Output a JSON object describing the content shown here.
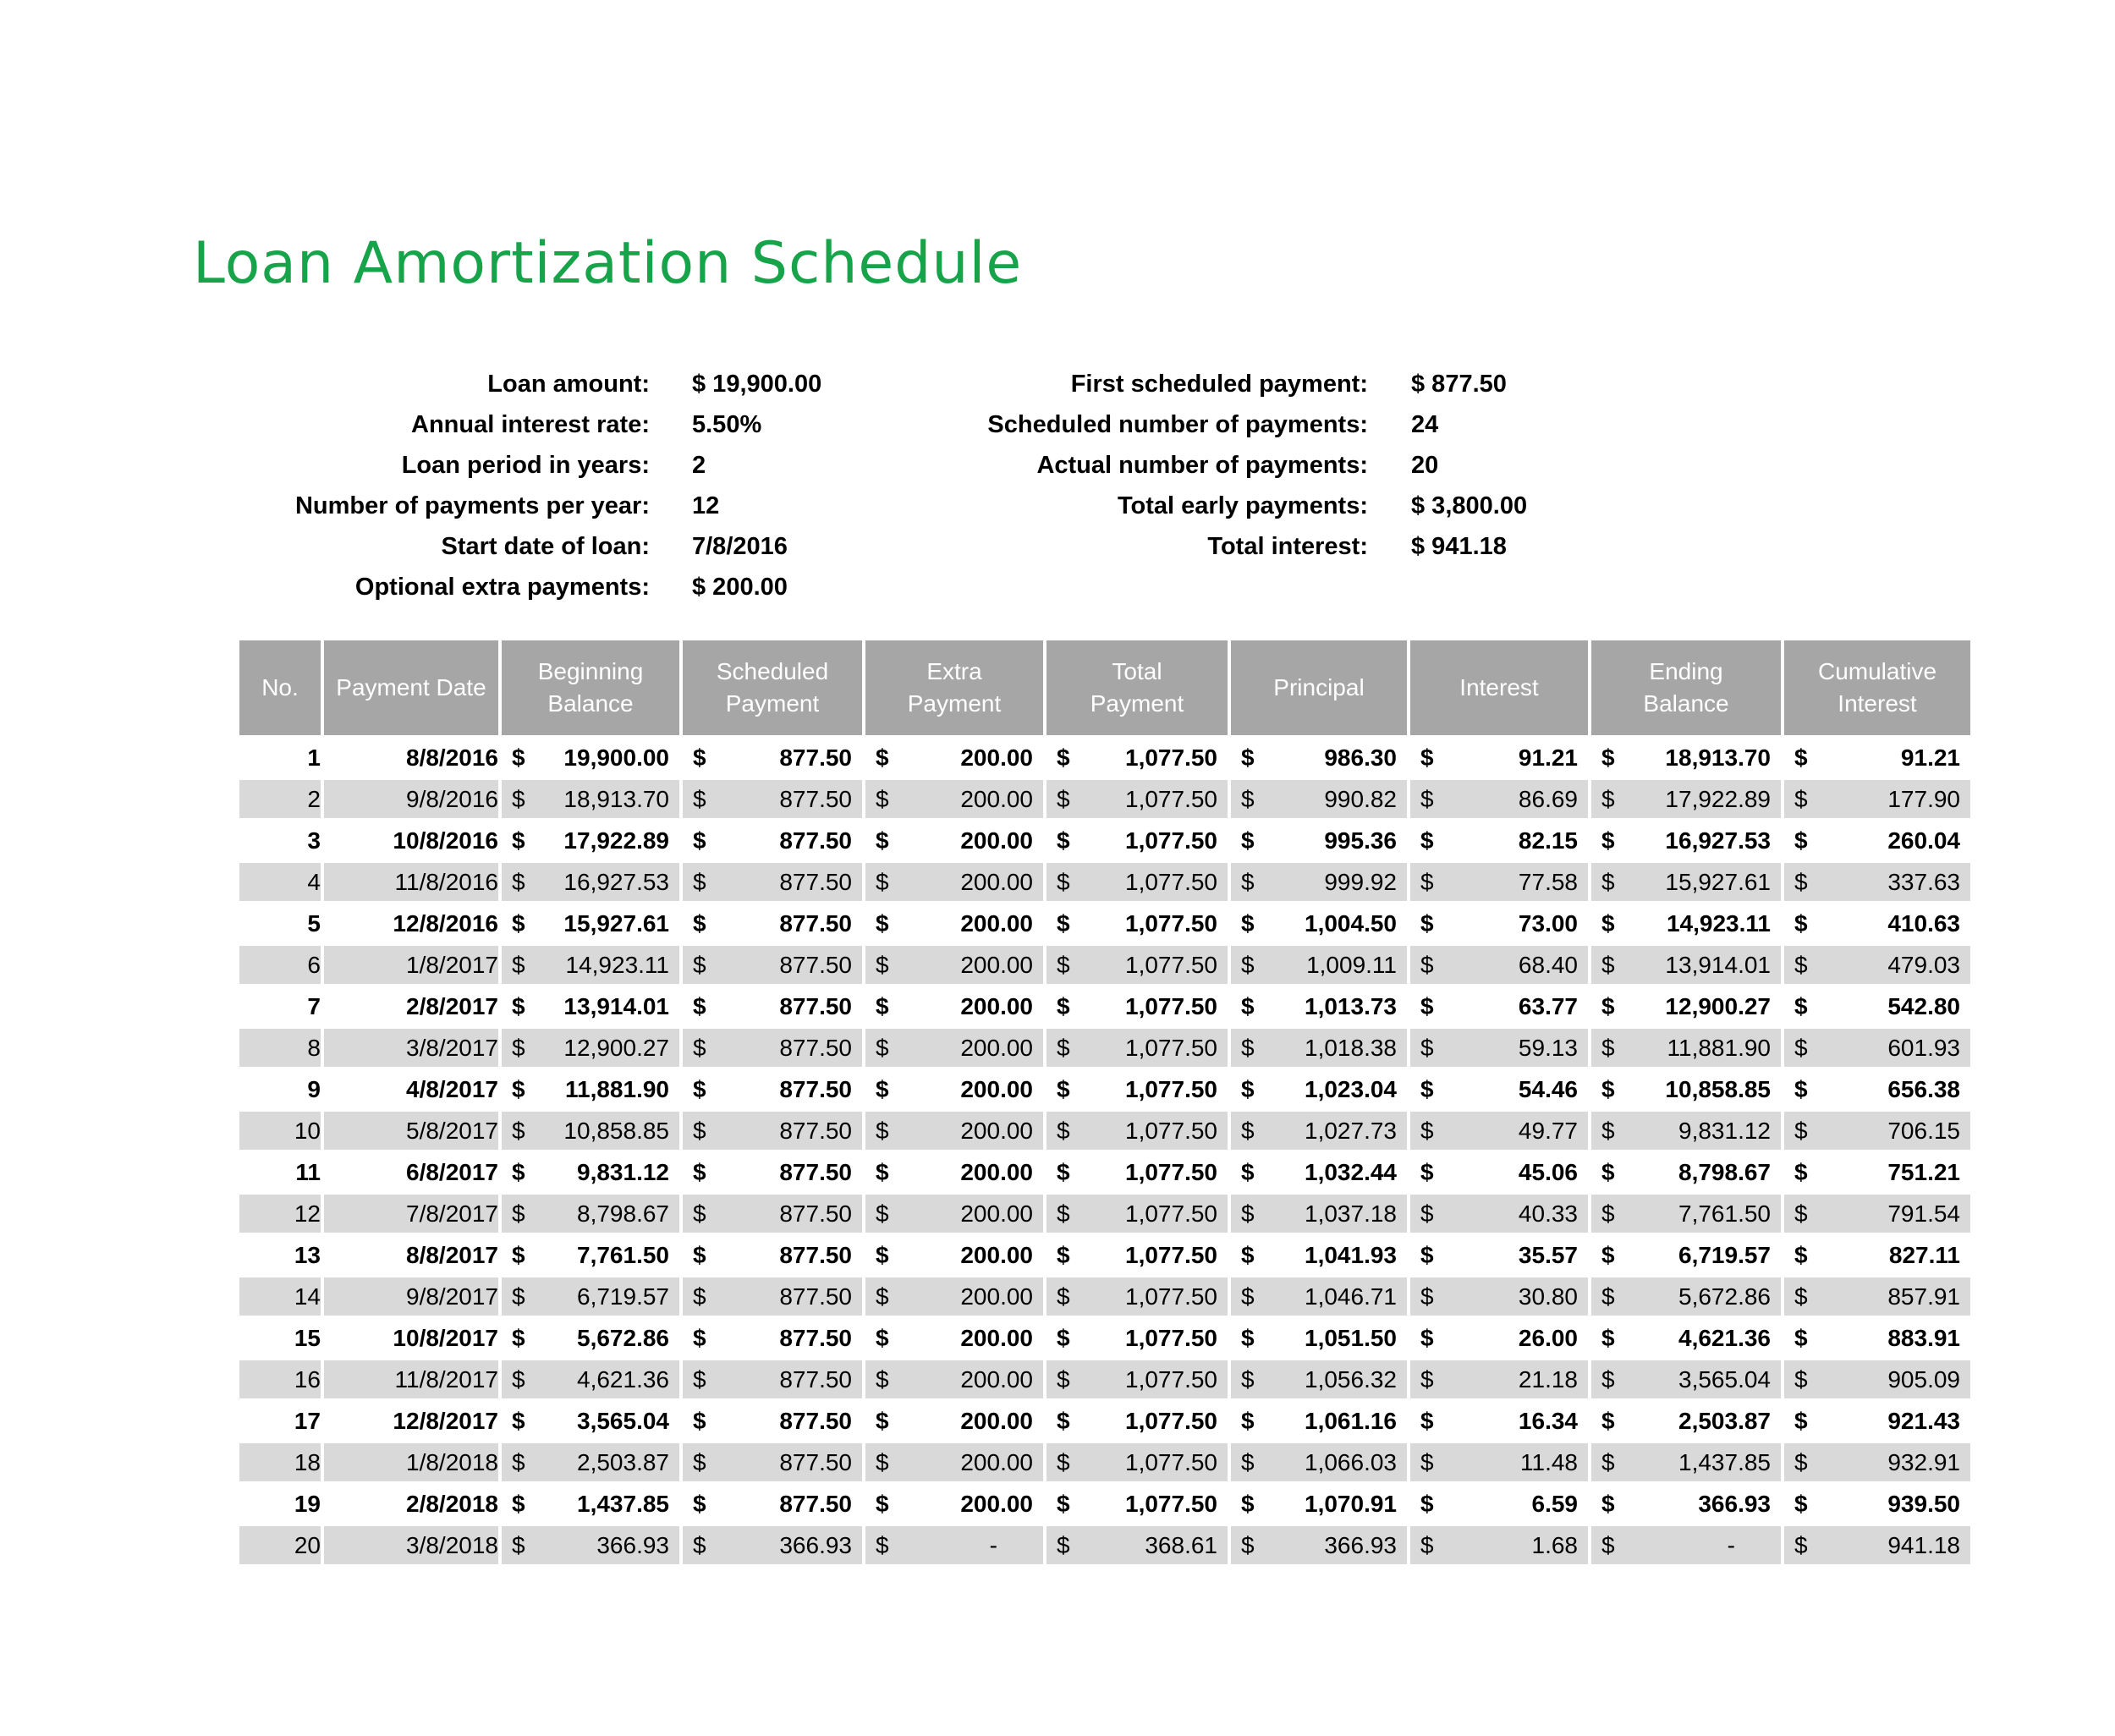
{
  "title": "Loan Amortization Schedule",
  "colors": {
    "accent": "#17a34a",
    "header-bg": "#a6a6a6",
    "stripe": "#d9d9d9"
  },
  "summary_left": [
    {
      "label": "Loan amount:",
      "value": "$ 19,900.00"
    },
    {
      "label": "Annual interest rate:",
      "value": "5.50%"
    },
    {
      "label": "Loan period in years:",
      "value": "2"
    },
    {
      "label": "Number of payments per year:",
      "value": "12"
    },
    {
      "label": "Start date of loan:",
      "value": "7/8/2016"
    },
    {
      "label": "Optional extra payments:",
      "value": "$ 200.00"
    }
  ],
  "summary_right": [
    {
      "label": "First scheduled payment:",
      "value": "$ 877.50"
    },
    {
      "label": "Scheduled number of payments:",
      "value": "24"
    },
    {
      "label": "Actual number of payments:",
      "value": "20"
    },
    {
      "label": "Total early payments:",
      "value": "$ 3,800.00"
    },
    {
      "label": "Total interest:",
      "value": "$ 941.18"
    }
  ],
  "table": {
    "currency": "$",
    "columns": [
      "No.",
      "Payment Date",
      "Beginning\nBalance",
      "Scheduled\nPayment",
      "Extra\nPayment",
      "Total\nPayment",
      "Principal",
      "Interest",
      "Ending\nBalance",
      "Cumulative\nInterest"
    ],
    "rows": [
      {
        "no": "1",
        "date": "8/8/2016",
        "amounts": [
          "19,900.00",
          "877.50",
          "200.00",
          "1,077.50",
          "986.30",
          "91.21",
          "18,913.70",
          "91.21"
        ]
      },
      {
        "no": "2",
        "date": "9/8/2016",
        "amounts": [
          "18,913.70",
          "877.50",
          "200.00",
          "1,077.50",
          "990.82",
          "86.69",
          "17,922.89",
          "177.90"
        ]
      },
      {
        "no": "3",
        "date": "10/8/2016",
        "amounts": [
          "17,922.89",
          "877.50",
          "200.00",
          "1,077.50",
          "995.36",
          "82.15",
          "16,927.53",
          "260.04"
        ]
      },
      {
        "no": "4",
        "date": "11/8/2016",
        "amounts": [
          "16,927.53",
          "877.50",
          "200.00",
          "1,077.50",
          "999.92",
          "77.58",
          "15,927.61",
          "337.63"
        ]
      },
      {
        "no": "5",
        "date": "12/8/2016",
        "amounts": [
          "15,927.61",
          "877.50",
          "200.00",
          "1,077.50",
          "1,004.50",
          "73.00",
          "14,923.11",
          "410.63"
        ]
      },
      {
        "no": "6",
        "date": "1/8/2017",
        "amounts": [
          "14,923.11",
          "877.50",
          "200.00",
          "1,077.50",
          "1,009.11",
          "68.40",
          "13,914.01",
          "479.03"
        ]
      },
      {
        "no": "7",
        "date": "2/8/2017",
        "amounts": [
          "13,914.01",
          "877.50",
          "200.00",
          "1,077.50",
          "1,013.73",
          "63.77",
          "12,900.27",
          "542.80"
        ]
      },
      {
        "no": "8",
        "date": "3/8/2017",
        "amounts": [
          "12,900.27",
          "877.50",
          "200.00",
          "1,077.50",
          "1,018.38",
          "59.13",
          "11,881.90",
          "601.93"
        ]
      },
      {
        "no": "9",
        "date": "4/8/2017",
        "amounts": [
          "11,881.90",
          "877.50",
          "200.00",
          "1,077.50",
          "1,023.04",
          "54.46",
          "10,858.85",
          "656.38"
        ]
      },
      {
        "no": "10",
        "date": "5/8/2017",
        "amounts": [
          "10,858.85",
          "877.50",
          "200.00",
          "1,077.50",
          "1,027.73",
          "49.77",
          "9,831.12",
          "706.15"
        ]
      },
      {
        "no": "11",
        "date": "6/8/2017",
        "amounts": [
          "9,831.12",
          "877.50",
          "200.00",
          "1,077.50",
          "1,032.44",
          "45.06",
          "8,798.67",
          "751.21"
        ]
      },
      {
        "no": "12",
        "date": "7/8/2017",
        "amounts": [
          "8,798.67",
          "877.50",
          "200.00",
          "1,077.50",
          "1,037.18",
          "40.33",
          "7,761.50",
          "791.54"
        ]
      },
      {
        "no": "13",
        "date": "8/8/2017",
        "amounts": [
          "7,761.50",
          "877.50",
          "200.00",
          "1,077.50",
          "1,041.93",
          "35.57",
          "6,719.57",
          "827.11"
        ]
      },
      {
        "no": "14",
        "date": "9/8/2017",
        "amounts": [
          "6,719.57",
          "877.50",
          "200.00",
          "1,077.50",
          "1,046.71",
          "30.80",
          "5,672.86",
          "857.91"
        ]
      },
      {
        "no": "15",
        "date": "10/8/2017",
        "amounts": [
          "5,672.86",
          "877.50",
          "200.00",
          "1,077.50",
          "1,051.50",
          "26.00",
          "4,621.36",
          "883.91"
        ]
      },
      {
        "no": "16",
        "date": "11/8/2017",
        "amounts": [
          "4,621.36",
          "877.50",
          "200.00",
          "1,077.50",
          "1,056.32",
          "21.18",
          "3,565.04",
          "905.09"
        ]
      },
      {
        "no": "17",
        "date": "12/8/2017",
        "amounts": [
          "3,565.04",
          "877.50",
          "200.00",
          "1,077.50",
          "1,061.16",
          "16.34",
          "2,503.87",
          "921.43"
        ]
      },
      {
        "no": "18",
        "date": "1/8/2018",
        "amounts": [
          "2,503.87",
          "877.50",
          "200.00",
          "1,077.50",
          "1,066.03",
          "11.48",
          "1,437.85",
          "932.91"
        ]
      },
      {
        "no": "19",
        "date": "2/8/2018",
        "amounts": [
          "1,437.85",
          "877.50",
          "200.00",
          "1,077.50",
          "1,070.91",
          "6.59",
          "366.93",
          "939.50"
        ]
      },
      {
        "no": "20",
        "date": "3/8/2018",
        "amounts": [
          "366.93",
          "366.93",
          "-",
          "368.61",
          "366.93",
          "1.68",
          "-",
          "941.18"
        ]
      }
    ]
  }
}
